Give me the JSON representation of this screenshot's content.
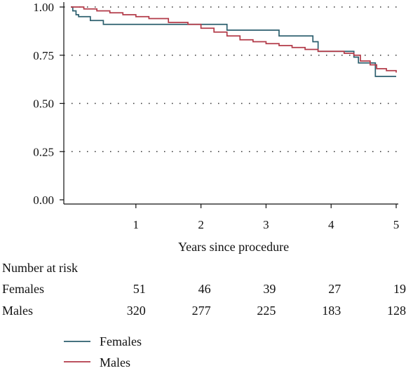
{
  "chart_data": {
    "type": "line",
    "xlabel": "Years since procedure",
    "ylabel": "",
    "xlim": [
      0,
      5
    ],
    "ylim": [
      0,
      1
    ],
    "x_ticks": [
      "1",
      "2",
      "3",
      "4",
      "5"
    ],
    "y_ticks": [
      "0.00",
      "0.25",
      "0.50",
      "0.75",
      "1.00"
    ],
    "grid": "horizontal dotted",
    "series": [
      {
        "name": "Females",
        "color": "#2c5f6e",
        "step": true,
        "points": [
          [
            0,
            1.0
          ],
          [
            0.03,
            0.98
          ],
          [
            0.08,
            0.96
          ],
          [
            0.12,
            0.95
          ],
          [
            0.3,
            0.93
          ],
          [
            0.5,
            0.91
          ],
          [
            2.4,
            0.88
          ],
          [
            3.2,
            0.85
          ],
          [
            3.72,
            0.82
          ],
          [
            3.8,
            0.77
          ],
          [
            4.35,
            0.74
          ],
          [
            4.42,
            0.71
          ],
          [
            4.68,
            0.64
          ],
          [
            5.0,
            0.64
          ]
        ]
      },
      {
        "name": "Males",
        "color": "#b23a48",
        "step": true,
        "points": [
          [
            0,
            1.0
          ],
          [
            0.2,
            0.99
          ],
          [
            0.4,
            0.98
          ],
          [
            0.6,
            0.97
          ],
          [
            0.8,
            0.96
          ],
          [
            1.0,
            0.95
          ],
          [
            1.2,
            0.94
          ],
          [
            1.5,
            0.92
          ],
          [
            1.8,
            0.91
          ],
          [
            2.0,
            0.89
          ],
          [
            2.2,
            0.87
          ],
          [
            2.4,
            0.85
          ],
          [
            2.6,
            0.83
          ],
          [
            2.8,
            0.82
          ],
          [
            3.0,
            0.81
          ],
          [
            3.2,
            0.8
          ],
          [
            3.4,
            0.79
          ],
          [
            3.6,
            0.78
          ],
          [
            3.8,
            0.77
          ],
          [
            4.0,
            0.77
          ],
          [
            4.2,
            0.76
          ],
          [
            4.35,
            0.75
          ],
          [
            4.45,
            0.72
          ],
          [
            4.6,
            0.7
          ],
          [
            4.7,
            0.68
          ],
          [
            4.85,
            0.67
          ],
          [
            5.0,
            0.66
          ]
        ]
      }
    ]
  },
  "risk_table": {
    "title": "Number at risk",
    "rows": [
      {
        "label": "Females",
        "values": [
          "51",
          "46",
          "39",
          "27",
          "19"
        ]
      },
      {
        "label": "Males",
        "values": [
          "320",
          "277",
          "225",
          "183",
          "128"
        ]
      }
    ]
  },
  "legend": {
    "items": [
      {
        "label": "Females",
        "color": "#2c5f6e"
      },
      {
        "label": "Males",
        "color": "#b23a48"
      }
    ]
  }
}
